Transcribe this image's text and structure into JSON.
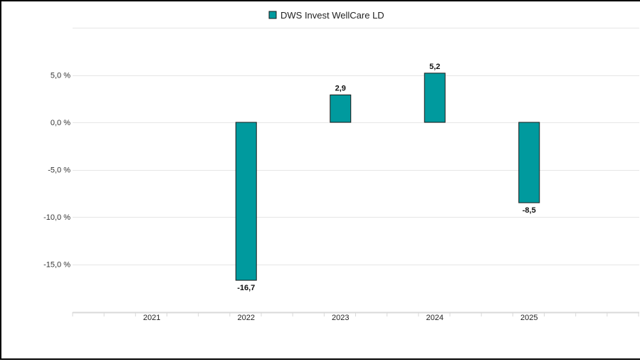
{
  "chart_data": {
    "type": "bar",
    "categories": [
      "2021",
      "2022",
      "2023",
      "2024",
      "2025"
    ],
    "series": [
      {
        "name": "DWS Invest WellCare LD",
        "values": [
          null,
          -16.7,
          2.9,
          5.2,
          -8.5
        ],
        "value_labels": [
          "",
          "-16,7",
          "2,9",
          "5,2",
          "-8,5"
        ],
        "color": "#009a9e"
      }
    ],
    "yticks": [
      5,
      0,
      -5,
      -10,
      -15
    ],
    "ytick_labels": [
      "5,0 %",
      "0,0 %",
      "-5,0 %",
      "-10,0 %",
      "-15,0 %"
    ],
    "ylim": [
      -20,
      10
    ],
    "grid": true,
    "legend_position": "top-center",
    "bar_edge_color": "#1a1a1a",
    "grid_color": "#e6e6e6"
  }
}
